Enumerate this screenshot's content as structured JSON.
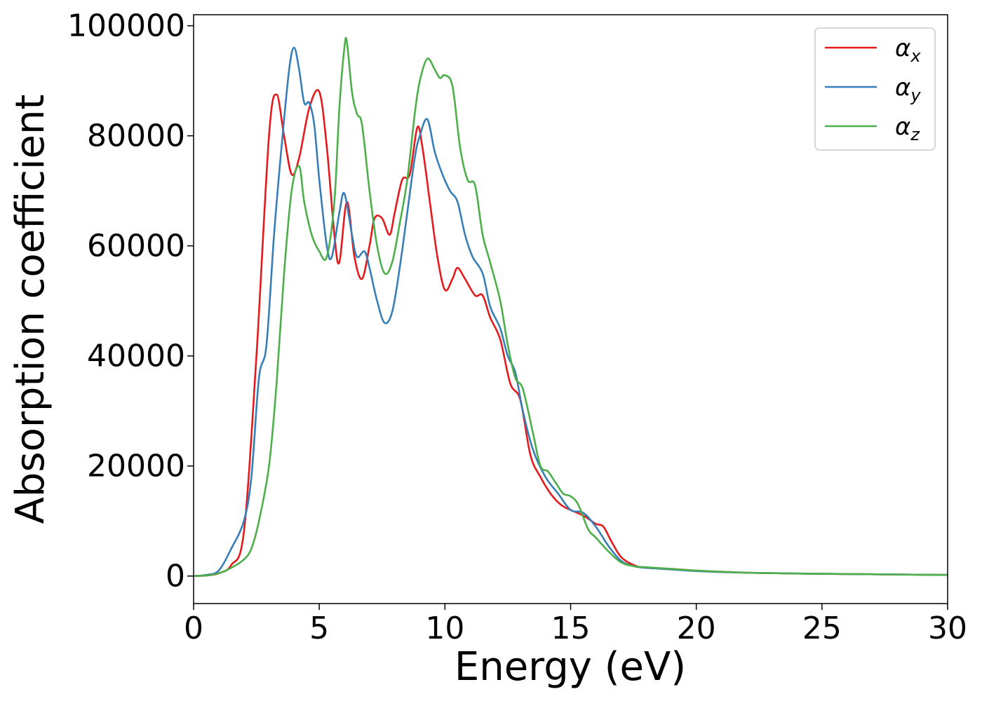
{
  "chart_data": {
    "type": "line",
    "xlabel": "Energy (eV)",
    "ylabel": "Absorption coefficient",
    "xlim": [
      0,
      30
    ],
    "ylim": [
      -5000,
      102000
    ],
    "xticks": [
      0,
      5,
      10,
      15,
      20,
      25,
      30
    ],
    "yticks": [
      0,
      20000,
      40000,
      60000,
      80000,
      100000
    ],
    "grid": false,
    "legend_position": "top-right",
    "series": [
      {
        "name": "α_x",
        "label_base": "α",
        "label_sub": "x",
        "color": "#e41a1c",
        "points": [
          [
            0,
            0
          ],
          [
            0.5,
            100
          ],
          [
            1.0,
            500
          ],
          [
            1.5,
            2000
          ],
          [
            2.0,
            8000
          ],
          [
            2.5,
            40000
          ],
          [
            3.0,
            80000
          ],
          [
            3.3,
            87500
          ],
          [
            3.6,
            80000
          ],
          [
            3.9,
            73000
          ],
          [
            4.2,
            76000
          ],
          [
            4.6,
            85000
          ],
          [
            5.0,
            88000
          ],
          [
            5.3,
            78000
          ],
          [
            5.6,
            62000
          ],
          [
            5.8,
            57000
          ],
          [
            6.1,
            68000
          ],
          [
            6.4,
            58000
          ],
          [
            6.7,
            54000
          ],
          [
            7.0,
            60000
          ],
          [
            7.2,
            65000
          ],
          [
            7.5,
            65000
          ],
          [
            7.8,
            62000
          ],
          [
            8.0,
            66000
          ],
          [
            8.3,
            72000
          ],
          [
            8.6,
            73000
          ],
          [
            8.9,
            81500
          ],
          [
            9.1,
            78000
          ],
          [
            9.4,
            68000
          ],
          [
            9.7,
            58000
          ],
          [
            10.0,
            52000
          ],
          [
            10.3,
            54000
          ],
          [
            10.5,
            56000
          ],
          [
            10.8,
            54000
          ],
          [
            11.2,
            51000
          ],
          [
            11.5,
            51000
          ],
          [
            11.8,
            47000
          ],
          [
            12.2,
            43000
          ],
          [
            12.6,
            35000
          ],
          [
            13.0,
            32000
          ],
          [
            13.4,
            22000
          ],
          [
            13.8,
            18000
          ],
          [
            14.2,
            15000
          ],
          [
            14.6,
            13000
          ],
          [
            15.0,
            12000
          ],
          [
            15.5,
            11000
          ],
          [
            16.0,
            9500
          ],
          [
            16.3,
            9000
          ],
          [
            16.6,
            6500
          ],
          [
            17.0,
            3500
          ],
          [
            17.5,
            2000
          ],
          [
            18.0,
            1500
          ],
          [
            19.0,
            1300
          ],
          [
            20.0,
            1000
          ],
          [
            22.0,
            600
          ],
          [
            25.0,
            400
          ],
          [
            30.0,
            200
          ]
        ]
      },
      {
        "name": "α_y",
        "label_base": "α",
        "label_sub": "y",
        "color": "#377eb8",
        "points": [
          [
            0,
            0
          ],
          [
            0.5,
            200
          ],
          [
            1.0,
            1000
          ],
          [
            1.5,
            5000
          ],
          [
            2.0,
            10000
          ],
          [
            2.3,
            18000
          ],
          [
            2.6,
            36000
          ],
          [
            2.9,
            42000
          ],
          [
            3.2,
            62000
          ],
          [
            3.5,
            78000
          ],
          [
            3.8,
            92000
          ],
          [
            4.0,
            96000
          ],
          [
            4.2,
            92000
          ],
          [
            4.4,
            86000
          ],
          [
            4.6,
            86000
          ],
          [
            4.8,
            82000
          ],
          [
            5.0,
            72000
          ],
          [
            5.3,
            60000
          ],
          [
            5.5,
            58000
          ],
          [
            5.8,
            66000
          ],
          [
            6.0,
            69500
          ],
          [
            6.3,
            62000
          ],
          [
            6.5,
            58000
          ],
          [
            6.8,
            59000
          ],
          [
            7.0,
            56000
          ],
          [
            7.3,
            50000
          ],
          [
            7.6,
            46000
          ],
          [
            7.9,
            48000
          ],
          [
            8.2,
            56000
          ],
          [
            8.5,
            66000
          ],
          [
            8.8,
            76000
          ],
          [
            9.0,
            80000
          ],
          [
            9.3,
            83000
          ],
          [
            9.6,
            77000
          ],
          [
            9.9,
            73000
          ],
          [
            10.2,
            70000
          ],
          [
            10.5,
            68000
          ],
          [
            10.8,
            62000
          ],
          [
            11.1,
            58000
          ],
          [
            11.5,
            55000
          ],
          [
            11.8,
            49000
          ],
          [
            12.2,
            45000
          ],
          [
            12.5,
            40000
          ],
          [
            12.8,
            37000
          ],
          [
            13.1,
            30000
          ],
          [
            13.5,
            23000
          ],
          [
            14.0,
            18000
          ],
          [
            14.5,
            15000
          ],
          [
            15.0,
            12000
          ],
          [
            15.5,
            11500
          ],
          [
            16.0,
            9000
          ],
          [
            16.5,
            5500
          ],
          [
            17.0,
            2800
          ],
          [
            17.5,
            1800
          ],
          [
            18.0,
            1500
          ],
          [
            19.0,
            1200
          ],
          [
            20.0,
            900
          ],
          [
            22.0,
            600
          ],
          [
            25.0,
            400
          ],
          [
            30.0,
            200
          ]
        ]
      },
      {
        "name": "α_z",
        "label_base": "α",
        "label_sub": "z",
        "color": "#4daf4a",
        "points": [
          [
            0,
            0
          ],
          [
            0.5,
            100
          ],
          [
            1.0,
            500
          ],
          [
            1.5,
            1500
          ],
          [
            2.0,
            3000
          ],
          [
            2.3,
            5000
          ],
          [
            2.6,
            10000
          ],
          [
            3.0,
            20000
          ],
          [
            3.3,
            35000
          ],
          [
            3.6,
            55000
          ],
          [
            3.9,
            70000
          ],
          [
            4.2,
            74500
          ],
          [
            4.4,
            68000
          ],
          [
            4.7,
            62000
          ],
          [
            5.0,
            59000
          ],
          [
            5.3,
            58000
          ],
          [
            5.6,
            68000
          ],
          [
            5.8,
            85000
          ],
          [
            6.0,
            96000
          ],
          [
            6.1,
            97000
          ],
          [
            6.3,
            88000
          ],
          [
            6.5,
            84000
          ],
          [
            6.7,
            82000
          ],
          [
            7.0,
            70000
          ],
          [
            7.3,
            60000
          ],
          [
            7.6,
            55000
          ],
          [
            7.9,
            57000
          ],
          [
            8.2,
            64000
          ],
          [
            8.5,
            72000
          ],
          [
            8.8,
            84000
          ],
          [
            9.0,
            90000
          ],
          [
            9.3,
            94000
          ],
          [
            9.6,
            92000
          ],
          [
            9.8,
            90500
          ],
          [
            10.0,
            91000
          ],
          [
            10.3,
            89000
          ],
          [
            10.6,
            78000
          ],
          [
            10.9,
            72000
          ],
          [
            11.2,
            71000
          ],
          [
            11.5,
            62000
          ],
          [
            11.8,
            57000
          ],
          [
            12.2,
            50000
          ],
          [
            12.5,
            42000
          ],
          [
            12.8,
            36000
          ],
          [
            13.1,
            34000
          ],
          [
            13.5,
            26000
          ],
          [
            13.8,
            20000
          ],
          [
            14.1,
            19000
          ],
          [
            14.4,
            17000
          ],
          [
            14.7,
            15000
          ],
          [
            15.0,
            14500
          ],
          [
            15.3,
            13000
          ],
          [
            15.7,
            8500
          ],
          [
            16.0,
            7000
          ],
          [
            16.5,
            4500
          ],
          [
            17.0,
            2500
          ],
          [
            17.5,
            1800
          ],
          [
            18.0,
            1600
          ],
          [
            19.0,
            1300
          ],
          [
            20.0,
            1000
          ],
          [
            22.0,
            600
          ],
          [
            25.0,
            400
          ],
          [
            30.0,
            200
          ]
        ]
      }
    ]
  }
}
